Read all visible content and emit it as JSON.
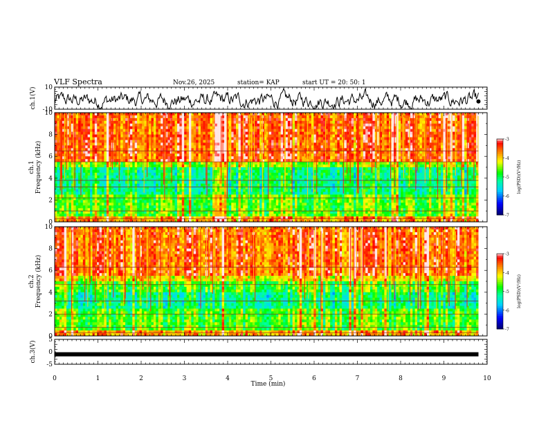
{
  "header": {
    "title": "VLF Spectra",
    "date": "Nov.26, 2025",
    "station": "station= KAP",
    "start": "start  UT  =   20: 50: 1"
  },
  "chart_data": {
    "type": "heatmap",
    "xlabel": "Time  (min)",
    "xlim": [
      0,
      10
    ],
    "xticks": [
      "0",
      "1",
      "2",
      "3",
      "4",
      "5",
      "6",
      "7",
      "8",
      "9",
      "10"
    ],
    "panels": [
      {
        "name": "ch1-waveform",
        "kind": "line",
        "ylabel": "ch.1(V)",
        "ylim": [
          -10,
          10
        ],
        "yticks": [
          "10",
          "-10"
        ],
        "data_end_min": 9.8
      },
      {
        "name": "ch1-spectrogram",
        "kind": "heatmap",
        "ylabel_top": "ch.1",
        "ylabel": "Frequency  (kHz)",
        "ylim": [
          0,
          10
        ],
        "yticks": [
          "10",
          "8",
          "6",
          "4",
          "2",
          "0"
        ],
        "data_end_min": 9.8,
        "dark_lines_khz": [
          6.5,
          5.5,
          3.8,
          3.2,
          2.2,
          1.0,
          0.3
        ],
        "colorbar": {
          "label": "log(PSD)(V²/Hz)",
          "range": [
            -7,
            -3
          ],
          "ticks": [
            "-3",
            "-4",
            "-5",
            "-6",
            "-7"
          ]
        }
      },
      {
        "name": "ch2-spectrogram",
        "kind": "heatmap",
        "ylabel_top": "ch.2",
        "ylabel": "Frequency  (kHz)",
        "ylim": [
          0,
          10
        ],
        "yticks": [
          "10",
          "8",
          "6",
          "4",
          "2",
          "0"
        ],
        "data_end_min": 9.8,
        "dark_lines_khz": [
          6.3,
          4.7,
          3.2,
          2.0,
          0.8,
          0.3
        ],
        "colorbar": {
          "label": "log(PSD)(V²/Hz)",
          "range": [
            -7,
            -3
          ],
          "ticks": [
            "-3",
            "-4",
            "-5",
            "-6",
            "-7"
          ]
        }
      },
      {
        "name": "ch3-waveform",
        "kind": "line",
        "ylabel": "ch.3(V)",
        "ylim": [
          -5,
          5
        ],
        "yticks": [
          "5",
          "0",
          "-5"
        ],
        "level_volts": -1,
        "data_end_min": 9.8
      }
    ]
  }
}
